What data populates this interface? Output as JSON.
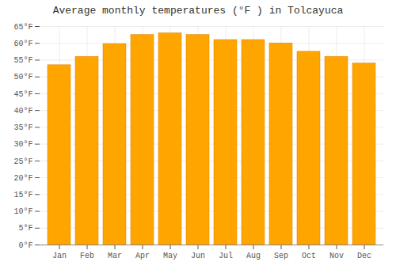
{
  "chart_data": {
    "type": "bar",
    "title": "Average monthly temperatures (°F ) in Tolcayuca",
    "categories": [
      "Jan",
      "Feb",
      "Mar",
      "Apr",
      "May",
      "Jun",
      "Jul",
      "Aug",
      "Sep",
      "Oct",
      "Nov",
      "Dec"
    ],
    "values": [
      53.5,
      56.0,
      59.8,
      62.5,
      63.0,
      62.5,
      61.0,
      61.0,
      60.0,
      57.5,
      56.0,
      54.0
    ],
    "color": "#FFA500",
    "ylim": [
      0,
      65
    ],
    "yticks": [
      {
        "value": 0,
        "label": "0°F"
      },
      {
        "value": 5,
        "label": "5°F"
      },
      {
        "value": 10,
        "label": "10°F"
      },
      {
        "value": 15,
        "label": "15°F"
      },
      {
        "value": 20,
        "label": "20°F"
      },
      {
        "value": 25,
        "label": "25°F"
      },
      {
        "value": 30,
        "label": "30°F"
      },
      {
        "value": 35,
        "label": "35°F"
      },
      {
        "value": 40,
        "label": "40°F"
      },
      {
        "value": 45,
        "label": "45°F"
      },
      {
        "value": 50,
        "label": "50°F"
      },
      {
        "value": 55,
        "label": "55°F"
      },
      {
        "value": 60,
        "label": "60°F"
      },
      {
        "value": 65,
        "label": "65°F"
      }
    ],
    "grid": true
  }
}
